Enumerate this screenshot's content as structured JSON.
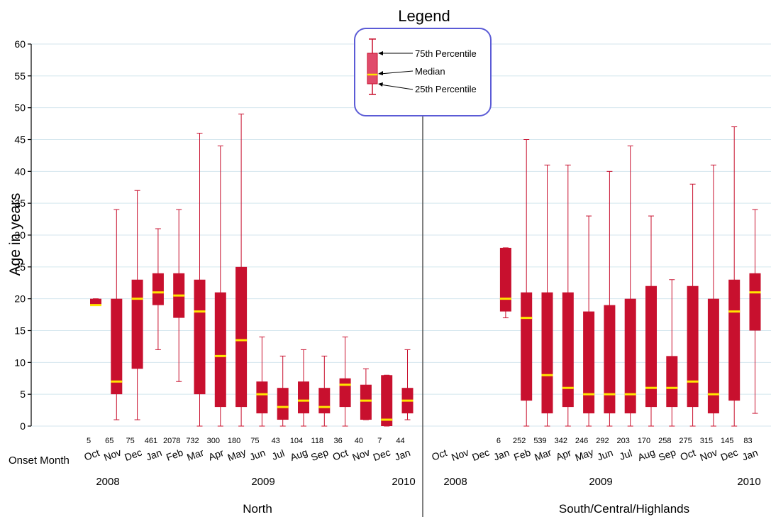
{
  "chart_data": {
    "type": "box",
    "ylabel": "Age in years",
    "x_axis_caption": "Onset Month",
    "ylim": [
      0,
      60
    ],
    "yticks": [
      0,
      5,
      10,
      15,
      20,
      25,
      30,
      35,
      40,
      45,
      50,
      55,
      60
    ],
    "grid": true,
    "colors": {
      "box": "#c8102e",
      "median": "#ffe600",
      "whisker": "#c8102e",
      "grid": "#d4e6ee"
    },
    "legend": {
      "title": "Legend",
      "labels": {
        "p75": "75th Percentile",
        "median": "Median",
        "p25": "25th Percentile"
      },
      "placement": "top-center"
    },
    "panels": [
      {
        "name": "North",
        "years": [
          "2008",
          "2009",
          "2010"
        ],
        "months": [
          "Oct",
          "Nov",
          "Dec",
          "Jan",
          "Feb",
          "Mar",
          "Apr",
          "May",
          "Jun",
          "Jul",
          "Aug",
          "Sep",
          "Oct",
          "Nov",
          "Dec",
          "Jan"
        ],
        "boxes": [
          {
            "n": 5,
            "min": 19,
            "q1": 19,
            "median": 19,
            "q3": 20,
            "max": 20
          },
          {
            "n": 65,
            "min": 1,
            "q1": 5,
            "median": 7,
            "q3": 20,
            "max": 34
          },
          {
            "n": 75,
            "min": 1,
            "q1": 9,
            "median": 20,
            "q3": 23,
            "max": 37
          },
          {
            "n": 461,
            "min": 12,
            "q1": 19,
            "median": 21,
            "q3": 24,
            "max": 31
          },
          {
            "n": 2078,
            "min": 7,
            "q1": 17,
            "median": 20.5,
            "q3": 24,
            "max": 34
          },
          {
            "n": 732,
            "min": 0,
            "q1": 5,
            "median": 18,
            "q3": 23,
            "max": 46
          },
          {
            "n": 300,
            "min": 0,
            "q1": 3,
            "median": 11,
            "q3": 21,
            "max": 44
          },
          {
            "n": 180,
            "min": 0,
            "q1": 3,
            "median": 13.5,
            "q3": 25,
            "max": 49
          },
          {
            "n": 75,
            "min": 0,
            "q1": 2,
            "median": 5,
            "q3": 7,
            "max": 14
          },
          {
            "n": 43,
            "min": 0,
            "q1": 1,
            "median": 3,
            "q3": 6,
            "max": 11
          },
          {
            "n": 104,
            "min": 0,
            "q1": 2,
            "median": 4,
            "q3": 7,
            "max": 12
          },
          {
            "n": 118,
            "min": 0,
            "q1": 2,
            "median": 3,
            "q3": 6,
            "max": 11
          },
          {
            "n": 36,
            "min": 0,
            "q1": 3,
            "median": 6.5,
            "q3": 7.5,
            "max": 14
          },
          {
            "n": 40,
            "min": 1,
            "q1": 1,
            "median": 4,
            "q3": 6.5,
            "max": 9
          },
          {
            "n": 7,
            "min": 0,
            "q1": 0,
            "median": 1,
            "q3": 8,
            "max": 8
          },
          {
            "n": 44,
            "min": 1,
            "q1": 2,
            "median": 4,
            "q3": 6,
            "max": 12
          }
        ]
      },
      {
        "name": "South/Central/Highlands",
        "years": [
          "2008",
          "2009",
          "2010"
        ],
        "months": [
          "Oct",
          "Nov",
          "Dec",
          "Jan",
          "Feb",
          "Mar",
          "Apr",
          "May",
          "Jun",
          "Jul",
          "Aug",
          "Sep",
          "Oct",
          "Nov",
          "Dec",
          "Jan"
        ],
        "boxes": [
          null,
          null,
          null,
          {
            "n": 6,
            "min": 17,
            "q1": 18,
            "median": 20,
            "q3": 28,
            "max": 28
          },
          {
            "n": 252,
            "min": 0,
            "q1": 4,
            "median": 17,
            "q3": 21,
            "max": 45
          },
          {
            "n": 539,
            "min": 0,
            "q1": 2,
            "median": 8,
            "q3": 21,
            "max": 41
          },
          {
            "n": 342,
            "min": 0,
            "q1": 3,
            "median": 6,
            "q3": 21,
            "max": 41
          },
          {
            "n": 246,
            "min": 0,
            "q1": 2,
            "median": 5,
            "q3": 18,
            "max": 33
          },
          {
            "n": 292,
            "min": 0,
            "q1": 2,
            "median": 5,
            "q3": 19,
            "max": 40
          },
          {
            "n": 203,
            "min": 0,
            "q1": 2,
            "median": 5,
            "q3": 20,
            "max": 44
          },
          {
            "n": 170,
            "min": 0,
            "q1": 3,
            "median": 6,
            "q3": 22,
            "max": 33
          },
          {
            "n": 258,
            "min": 0,
            "q1": 3,
            "median": 6,
            "q3": 11,
            "max": 23
          },
          {
            "n": 275,
            "min": 0,
            "q1": 3,
            "median": 7,
            "q3": 22,
            "max": 38
          },
          {
            "n": 315,
            "min": 0,
            "q1": 2,
            "median": 5,
            "q3": 20,
            "max": 41
          },
          {
            "n": 145,
            "min": 0,
            "q1": 4,
            "median": 18,
            "q3": 23,
            "max": 47
          },
          {
            "n": 83,
            "min": 2,
            "q1": 15,
            "median": 21,
            "q3": 24,
            "max": 34
          }
        ]
      }
    ]
  }
}
